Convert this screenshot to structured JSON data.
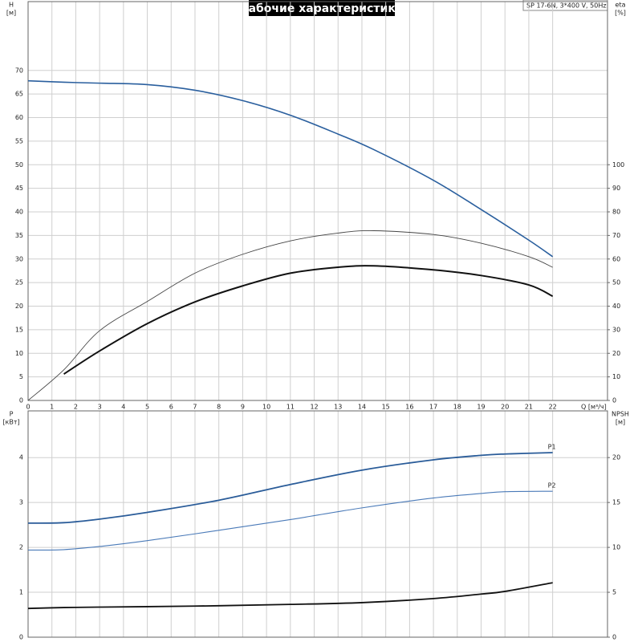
{
  "chart_data": [
    {
      "type": "line",
      "title": "Рабочие характеристики",
      "subtitle": "SP 17-6N, 3*400 V, 50Hz",
      "ylabel": "H",
      "yunit": "[м]",
      "y2label": "eta",
      "y2unit": "[%]",
      "xlabel": "Q [м³/ч]",
      "x": [
        0,
        1.5,
        3,
        5,
        7,
        9,
        11,
        13,
        14.5,
        17,
        19,
        21,
        22
      ],
      "xlim": [
        0,
        24.3
      ],
      "xticks": [
        0,
        1,
        2,
        3,
        4,
        5,
        6,
        7,
        8,
        9,
        10,
        11,
        12,
        13,
        14,
        15,
        16,
        17,
        18,
        19,
        20,
        21,
        22
      ],
      "ylim": [
        0,
        84.6
      ],
      "yticks": [
        0,
        5,
        10,
        15,
        20,
        25,
        30,
        35,
        40,
        45,
        50,
        55,
        60,
        65,
        70
      ],
      "y2lim": [
        0,
        169.2
      ],
      "y2ticks": [
        0,
        10,
        20,
        30,
        40,
        50,
        60,
        70,
        80,
        90,
        100
      ],
      "grid": true,
      "series": [
        {
          "color": "#2a5f9e",
          "values": [
            67.8,
            67.5,
            67.3,
            67.0,
            65.8,
            63.6,
            60.5,
            56.5,
            53.2,
            46.7,
            40.5,
            34.0,
            30.5
          ]
        },
        {
          "color": "#444444",
          "axis": "y2",
          "values": [
            0,
            13,
            29.6,
            42,
            54,
            62,
            67.7,
            71,
            72,
            70.4,
            66.7,
            61,
            56.5
          ]
        },
        {
          "color": "#111111",
          "axis": "y2",
          "values": [
            null,
            11.2,
            21,
            32.6,
            41.8,
            48.6,
            54,
            56.5,
            57.1,
            55.4,
            53,
            49,
            44.2
          ]
        }
      ]
    },
    {
      "type": "line",
      "ylabel": "P",
      "yunit": "[кВт]",
      "y2label": "NPSH",
      "y2unit": "[м]",
      "x": [
        0,
        1.5,
        3,
        5,
        8,
        11,
        14,
        17,
        19,
        20,
        22
      ],
      "xlim": [
        0,
        24.3
      ],
      "ylim": [
        0,
        5.04
      ],
      "yticks": [
        0,
        1,
        2,
        3,
        4
      ],
      "y2lim": [
        0,
        25.2
      ],
      "y2ticks": [
        0,
        5,
        10,
        15,
        20
      ],
      "grid": true,
      "series": [
        {
          "name": "P1",
          "color": "#2a5c99",
          "values": [
            2.54,
            2.55,
            2.63,
            2.78,
            3.05,
            3.4,
            3.72,
            3.95,
            4.05,
            4.08,
            4.11
          ]
        },
        {
          "name": "P2",
          "color": "#4a7ab8",
          "values": [
            1.94,
            1.95,
            2.02,
            2.15,
            2.38,
            2.62,
            2.88,
            3.1,
            3.2,
            3.24,
            3.25
          ]
        },
        {
          "color": "#111111",
          "axis": "y2",
          "values": [
            3.2,
            3.3,
            3.35,
            3.4,
            3.5,
            3.65,
            3.85,
            4.3,
            4.8,
            5.1,
            6.07
          ]
        }
      ]
    }
  ]
}
